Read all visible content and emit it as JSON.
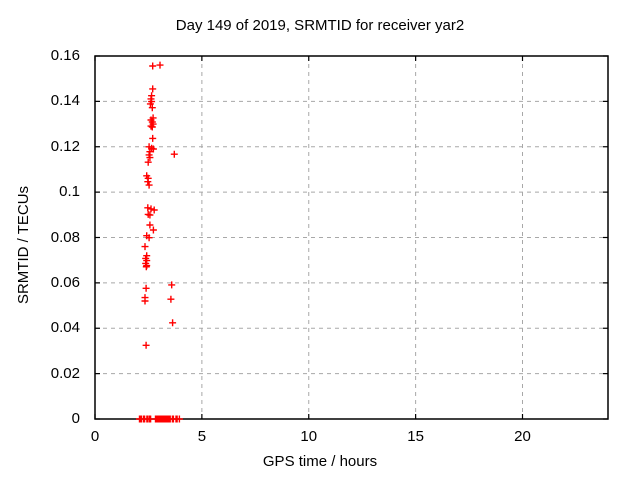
{
  "window": {
    "background": "#ffffff"
  },
  "chart_data": {
    "type": "scatter",
    "title": "Day 149 of 2019, SRMTID for receiver yar2",
    "xlabel": "GPS time / hours",
    "ylabel": "SRMTID / TECUs",
    "xlim": [
      0,
      24
    ],
    "ylim": [
      0,
      0.16
    ],
    "xticks": {
      "values": [
        0,
        5,
        10,
        15,
        20
      ],
      "labels": [
        "0",
        "5",
        "10",
        "15",
        "20"
      ]
    },
    "yticks": {
      "values": [
        0,
        0.02,
        0.04,
        0.06,
        0.08,
        0.1,
        0.12,
        0.14,
        0.16
      ],
      "labels": [
        "0",
        "0.02",
        "0.04",
        "0.06",
        "0.08",
        "0.1",
        "0.12",
        "0.14",
        "0.16"
      ]
    },
    "grid": true,
    "legend": "none",
    "colors": {
      "marker": "#ff0000",
      "grid": "#a8a8a8",
      "border": "#000000",
      "text": "#000000",
      "background": "#ffffff"
    },
    "series": [
      {
        "name": "srmtid",
        "marker": "plus",
        "color": "#ff0000",
        "points": [
          [
            2.7,
            0.1556
          ],
          [
            3.04,
            0.156
          ],
          [
            2.7,
            0.1455
          ],
          [
            2.65,
            0.1425
          ],
          [
            2.62,
            0.1411
          ],
          [
            2.65,
            0.1399
          ],
          [
            2.59,
            0.1389
          ],
          [
            2.68,
            0.1372
          ],
          [
            2.72,
            0.1327
          ],
          [
            2.62,
            0.1318
          ],
          [
            2.68,
            0.1309
          ],
          [
            2.72,
            0.13
          ],
          [
            2.62,
            0.1291
          ],
          [
            2.68,
            0.1287
          ],
          [
            2.7,
            0.1237
          ],
          [
            2.53,
            0.12
          ],
          [
            2.65,
            0.1193
          ],
          [
            2.73,
            0.119
          ],
          [
            2.57,
            0.1178
          ],
          [
            2.53,
            0.1164
          ],
          [
            2.57,
            0.1152
          ],
          [
            2.49,
            0.1132
          ],
          [
            3.71,
            0.1167
          ],
          [
            2.42,
            0.1072
          ],
          [
            2.49,
            0.1061
          ],
          [
            2.47,
            0.1046
          ],
          [
            2.53,
            0.1031
          ],
          [
            2.47,
            0.0931
          ],
          [
            2.62,
            0.0926
          ],
          [
            2.77,
            0.0921
          ],
          [
            2.49,
            0.0902
          ],
          [
            2.57,
            0.0899
          ],
          [
            2.57,
            0.0855
          ],
          [
            2.73,
            0.0833
          ],
          [
            2.42,
            0.0808
          ],
          [
            2.53,
            0.0799
          ],
          [
            2.34,
            0.076
          ],
          [
            2.42,
            0.072
          ],
          [
            2.37,
            0.0708
          ],
          [
            2.42,
            0.0698
          ],
          [
            2.37,
            0.0686
          ],
          [
            2.42,
            0.0676
          ],
          [
            2.4,
            0.0671
          ],
          [
            3.59,
            0.0591
          ],
          [
            2.39,
            0.0576
          ],
          [
            2.34,
            0.0535
          ],
          [
            3.55,
            0.0528
          ],
          [
            2.34,
            0.052
          ],
          [
            3.63,
            0.0424
          ],
          [
            2.39,
            0.0325
          ],
          [
            2.08,
            0
          ],
          [
            2.13,
            0
          ],
          [
            2.17,
            0
          ],
          [
            2.27,
            0
          ],
          [
            2.32,
            0
          ],
          [
            2.43,
            0
          ],
          [
            2.47,
            0
          ],
          [
            2.55,
            0
          ],
          [
            2.6,
            0
          ],
          [
            2.83,
            0
          ],
          [
            2.88,
            0
          ],
          [
            2.92,
            0
          ],
          [
            2.97,
            0
          ],
          [
            3.02,
            0
          ],
          [
            3.07,
            0
          ],
          [
            3.12,
            0
          ],
          [
            3.17,
            0
          ],
          [
            3.22,
            0
          ],
          [
            3.27,
            0
          ],
          [
            3.32,
            0
          ],
          [
            3.37,
            0
          ],
          [
            3.42,
            0
          ],
          [
            3.47,
            0
          ],
          [
            3.52,
            0
          ],
          [
            3.62,
            0
          ],
          [
            3.67,
            0
          ],
          [
            3.79,
            0
          ],
          [
            3.84,
            0
          ],
          [
            3.95,
            0
          ]
        ]
      }
    ]
  }
}
